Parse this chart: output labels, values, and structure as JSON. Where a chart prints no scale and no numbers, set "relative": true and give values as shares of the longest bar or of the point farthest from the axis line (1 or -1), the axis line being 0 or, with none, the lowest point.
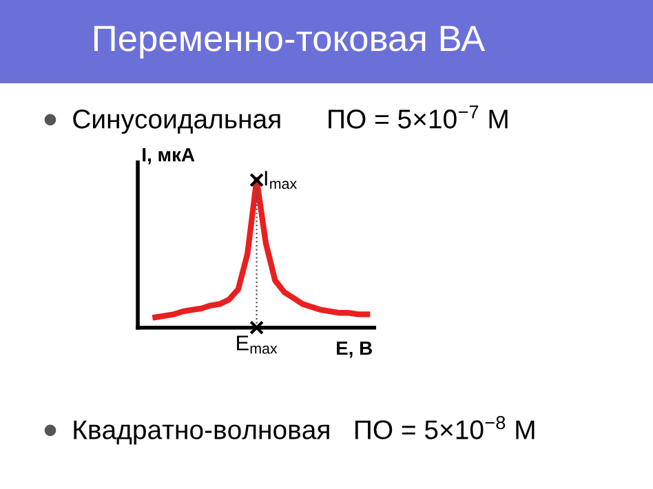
{
  "chart_data": {
    "type": "line",
    "title": "Переменно-токовая ВА",
    "xlabel": "E, В",
    "ylabel": "I, мкА",
    "categories": [
      null,
      null,
      null,
      null,
      null,
      null,
      null,
      null,
      null,
      null,
      null,
      null,
      null,
      null,
      null,
      null,
      null,
      null,
      null,
      null,
      null,
      null,
      null,
      null
    ],
    "relative": true,
    "series": [
      {
        "color": "#e8201f",
        "values": [
          0.07,
          0.08,
          0.09,
          0.11,
          0.12,
          0.13,
          0.15,
          0.16,
          0.19,
          0.26,
          0.5,
          1.0,
          0.57,
          0.32,
          0.24,
          0.2,
          0.16,
          0.14,
          0.12,
          0.11,
          0.1,
          0.1,
          0.09,
          0.09
        ]
      }
    ],
    "annotations": [
      "Синусоидальная      ПО = 5×10$^{−7}$ М",
      "Квадратно-волновая   ПО = 5×10$^{−8}$ М",
      "I$_{max}$",
      "E$_{max}$"
    ],
    "grid": false,
    "marker": "none",
    "line_style": "solid"
  }
}
